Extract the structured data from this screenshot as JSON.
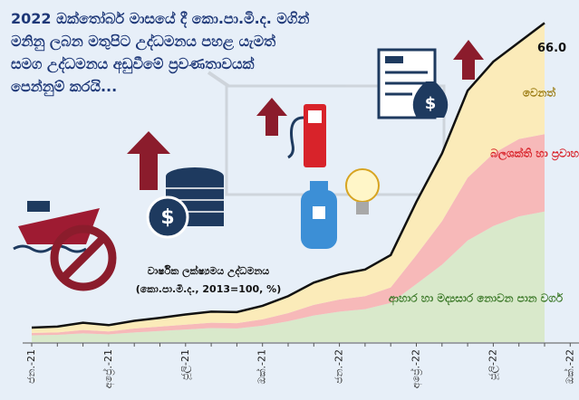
{
  "chart_data": {
    "type": "stacked_area",
    "title": "2022 ඔක්තෝබර් මාසයේ දී කො.පා.මි.ද. මගින් මනිනු ලබන මතුපිට උද්ධමනය පහළ යැමත් සමග උද්ධමනය අඩුවීමේ ප්‍රවණතාවයක් පෙන්නුම් කරයි...",
    "annotation": [
      "වාර්ෂික ලක්ෂ්‍යමය උද්ධමනය",
      "(කො.පා.මි.ද., 2013=100, %)"
    ],
    "categories": [
      "ජන.-21",
      null,
      null,
      "අප්‍රේ.-21",
      null,
      null,
      "ජූලි-21",
      null,
      null,
      "ඔක්.-21",
      null,
      null,
      "ජන.-22",
      null,
      null,
      "අප්‍රේ.-22",
      null,
      null,
      "ජූලි-22",
      null,
      null,
      "ඔක්.-22"
    ],
    "ylim": [
      0,
      70
    ],
    "series": [
      {
        "name": "ආහාර හා මද්‍යසාර නොවන පාන වර්ග",
        "color": "#d9e9cb",
        "label_color": "#3d7a2a",
        "values": [
          1.4,
          1.5,
          1.8,
          1.6,
          2,
          2.3,
          2.6,
          2.9,
          2.8,
          3.4,
          4.3,
          5.5,
          6.3,
          6.8,
          8.1,
          12,
          16,
          21,
          24,
          26,
          27,
          null
        ]
      },
      {
        "name": "බලශක්ති හා ප්‍රවාහන",
        "color": "#f7b9b9",
        "label_color": "#d8232a",
        "values": [
          0.5,
          0.5,
          0.7,
          0.6,
          0.8,
          0.9,
          1,
          1.1,
          1.1,
          1.3,
          1.7,
          2.2,
          2.5,
          2.7,
          3.2,
          6,
          9,
          13,
          15,
          16,
          16,
          null
        ]
      },
      {
        "name": "වෙනත්",
        "color": "#fbebb9",
        "label_color": "#9a7a10",
        "values": [
          1.1,
          1.2,
          1.5,
          1.3,
          1.6,
          1.8,
          2.1,
          2.3,
          2.3,
          2.8,
          3.5,
          4.6,
          5.2,
          5.5,
          6.7,
          11,
          14,
          18,
          19,
          20,
          23,
          null
        ]
      }
    ],
    "total": {
      "color": "#111111",
      "values": [
        3,
        3.2,
        4,
        3.5,
        4.4,
        5,
        5.7,
        6.3,
        6.2,
        7.5,
        9.5,
        12.3,
        14,
        15,
        18,
        29,
        39,
        52,
        58,
        62,
        66,
        null
      ],
      "value_labels": [
        null,
        null,
        null,
        null,
        null,
        null,
        null,
        null,
        null,
        null,
        null,
        null,
        null,
        null,
        null,
        null,
        null,
        null,
        null,
        null,
        "66.0",
        null
      ]
    }
  }
}
